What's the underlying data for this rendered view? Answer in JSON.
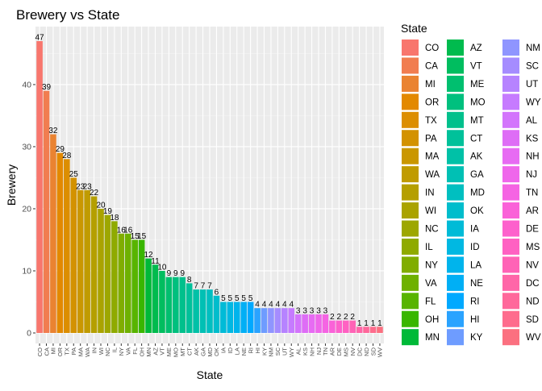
{
  "chart_data": {
    "type": "bar",
    "title": "Brewery vs State",
    "xlabel": "State",
    "ylabel": "Brewery",
    "ylim": [
      0,
      48
    ],
    "yticks": [
      0,
      10,
      20,
      30,
      40
    ],
    "grid": true,
    "legend_title": "State",
    "legend_position": "right",
    "categories": [
      "CO",
      "CA",
      "MI",
      "OR",
      "TX",
      "PA",
      "MA",
      "WA",
      "IN",
      "WI",
      "NC",
      "IL",
      "NY",
      "VA",
      "FL",
      "OH",
      "MN",
      "AZ",
      "VT",
      "ME",
      "MO",
      "MT",
      "CT",
      "AK",
      "GA",
      "MD",
      "OK",
      "IA",
      "ID",
      "LA",
      "NE",
      "RI",
      "HI",
      "KY",
      "NM",
      "SC",
      "UT",
      "WY",
      "AL",
      "KS",
      "NH",
      "NJ",
      "TN",
      "AR",
      "DE",
      "MS",
      "NV",
      "DC",
      "ND",
      "SD",
      "WV"
    ],
    "values": [
      47,
      39,
      32,
      29,
      28,
      25,
      23,
      23,
      22,
      20,
      19,
      18,
      16,
      16,
      15,
      15,
      12,
      11,
      10,
      9,
      9,
      9,
      8,
      7,
      7,
      7,
      6,
      5,
      5,
      5,
      5,
      5,
      4,
      4,
      4,
      4,
      4,
      4,
      3,
      3,
      3,
      3,
      3,
      2,
      2,
      2,
      2,
      1,
      1,
      1,
      1
    ],
    "colors": [
      "#F8766D",
      "#F17D50",
      "#EA8331",
      "#E38900",
      "#DC8E00",
      "#D39200",
      "#CA9700",
      "#C09B00",
      "#B59F00",
      "#AAA300",
      "#9DA700",
      "#8FAA00",
      "#80AD00",
      "#6EB100",
      "#58B400",
      "#39B600",
      "#00B938",
      "#00BB4E",
      "#00BD5F",
      "#00BF6F",
      "#00C07E",
      "#00C08C",
      "#00C19A",
      "#00C1A7",
      "#00C0B4",
      "#00BFC0",
      "#00BDCC",
      "#00BBD7",
      "#00B8E2",
      "#00B4EC",
      "#00AFF5",
      "#00A9FF",
      "#2AA3FF",
      "#6E9CFF",
      "#8F95FF",
      "#A58CFF",
      "#B683FF",
      "#C67BFF",
      "#D374FC",
      "#DE6DF6",
      "#E76BF3",
      "#EF67EB",
      "#F564E3",
      "#FA62D8",
      "#FD61CC",
      "#FF61C2",
      "#FF63B6",
      "#FF66A8",
      "#FF689B",
      "#FE6C8D",
      "#FB7080"
    ]
  }
}
